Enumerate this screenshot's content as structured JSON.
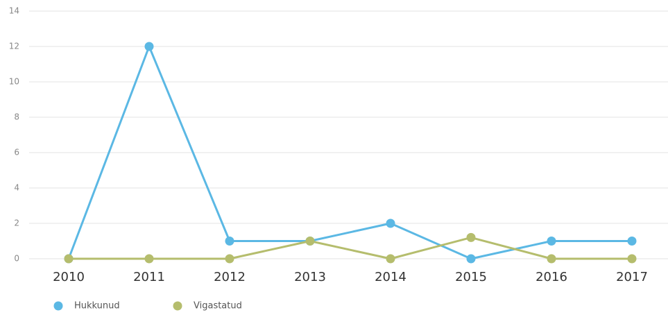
{
  "chart_data": {
    "type": "line",
    "categories": [
      "2010",
      "2011",
      "2012",
      "2013",
      "2014",
      "2015",
      "2016",
      "2017"
    ],
    "series": [
      {
        "name": "Hukkunud",
        "color": "#5bb8e4",
        "values": [
          0,
          12,
          1,
          1,
          2,
          0,
          1,
          1
        ]
      },
      {
        "name": "Vigastatud",
        "color": "#b5bd6d",
        "values": [
          0,
          0,
          0,
          1,
          0,
          1.2,
          0,
          0
        ]
      }
    ],
    "ylim": [
      0,
      14
    ],
    "yticks": [
      0,
      2,
      4,
      6,
      8,
      10,
      12,
      14
    ],
    "grid": true,
    "legend": "bottom-left"
  }
}
